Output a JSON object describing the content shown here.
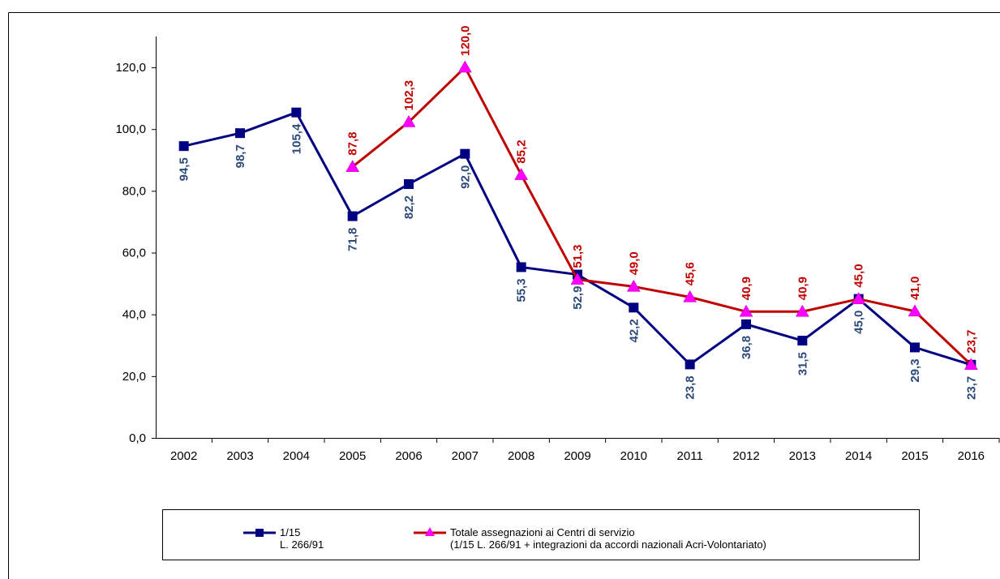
{
  "chart_data": {
    "type": "line",
    "categories": [
      "2002",
      "2003",
      "2004",
      "2005",
      "2006",
      "2007",
      "2008",
      "2009",
      "2010",
      "2011",
      "2012",
      "2013",
      "2014",
      "2015",
      "2016"
    ],
    "series": [
      {
        "name": "1/15\nL. 266/91",
        "color": "#000080",
        "marker": "square",
        "marker_color": "#000080",
        "label_color": "#2b4a7a",
        "label_position": "below",
        "values": [
          94.5,
          98.7,
          105.4,
          71.8,
          82.2,
          92.0,
          55.3,
          52.9,
          42.2,
          23.8,
          36.8,
          31.5,
          45.0,
          29.3,
          23.7
        ],
        "value_labels": [
          "94,5",
          "98,7",
          "105,4",
          "71,8",
          "82,2",
          "92,0",
          "55,3",
          "52,9",
          "42,2",
          "23,8",
          "36,8",
          "31,5",
          "45,0",
          "29,3",
          "23,7"
        ]
      },
      {
        "name": "Totale assegnazioni ai Centri di servizio\n(1/15 L. 266/91 + integrazioni da accordi nazionali Acri-Volontariato)",
        "color": "#c00000",
        "marker": "triangle",
        "marker_color": "#ff00ff",
        "label_color": "#c00000",
        "label_position": "above",
        "values": [
          null,
          null,
          null,
          87.8,
          102.3,
          120.0,
          85.2,
          51.3,
          49.0,
          45.6,
          40.9,
          40.9,
          45.0,
          41.0,
          23.7
        ],
        "value_labels": [
          null,
          null,
          null,
          "87,8",
          "102,3",
          "120,0",
          "85,2",
          "51,3",
          "49,0",
          "45,6",
          "40,9",
          "40,9",
          "45,0",
          "41,0",
          "23,7"
        ]
      }
    ],
    "ylim": [
      0,
      130
    ],
    "yticks": [
      {
        "value": 0,
        "label": "0,0"
      },
      {
        "value": 20,
        "label": "20,0"
      },
      {
        "value": 40,
        "label": "40,0"
      },
      {
        "value": 60,
        "label": "60,0"
      },
      {
        "value": 80,
        "label": "80,0"
      },
      {
        "value": 100,
        "label": "100,0"
      },
      {
        "value": 120,
        "label": "120,0"
      }
    ],
    "legend": "bottom"
  }
}
